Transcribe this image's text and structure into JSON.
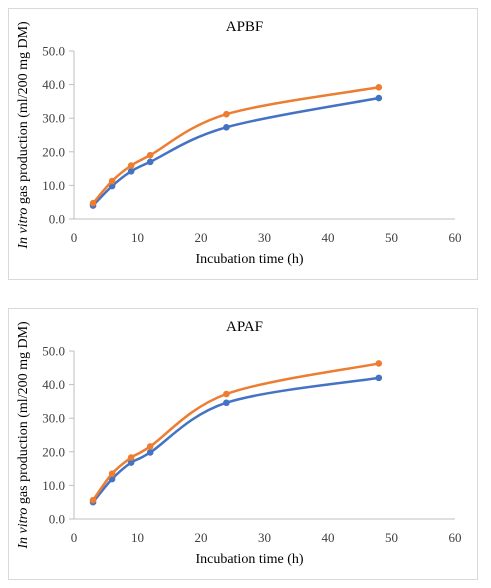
{
  "chart_data": [
    {
      "type": "line",
      "title": "APBF",
      "xlabel": "Incubation time (h)",
      "ylabel": {
        "italic": "In vitro",
        "rest": " gas production (ml/200 mg DM)"
      },
      "xlim": [
        0,
        60
      ],
      "ylim": [
        0,
        50
      ],
      "xticks": [
        "0",
        "10",
        "20",
        "30",
        "40",
        "50",
        "60"
      ],
      "yticks": [
        "0.0",
        "10.0",
        "20.0",
        "30.0",
        "40.0",
        "50.0"
      ],
      "grid": false,
      "legend": "none",
      "x": [
        3,
        6,
        9,
        12,
        24,
        48
      ],
      "series": [
        {
          "color": "#4472c4",
          "values": [
            4.0,
            9.8,
            14.2,
            17.0,
            27.3,
            36.0
          ]
        },
        {
          "color": "#ed7d31",
          "values": [
            4.7,
            11.3,
            15.9,
            19.0,
            31.2,
            39.2
          ]
        }
      ]
    },
    {
      "type": "line",
      "title": "APAF",
      "xlabel": "Incubation time (h)",
      "ylabel": {
        "italic": "In vitro",
        "rest": " gas production (ml/200 mg DM)"
      },
      "xlim": [
        0,
        60
      ],
      "ylim": [
        0,
        50
      ],
      "xticks": [
        "0",
        "10",
        "20",
        "30",
        "40",
        "50",
        "60"
      ],
      "yticks": [
        "0.0",
        "10.0",
        "20.0",
        "30.0",
        "40.0",
        "50.0"
      ],
      "grid": false,
      "legend": "none",
      "x": [
        3,
        6,
        9,
        12,
        24,
        48
      ],
      "series": [
        {
          "color": "#4472c4",
          "values": [
            5.0,
            11.9,
            16.8,
            19.8,
            34.6,
            42.0
          ]
        },
        {
          "color": "#ed7d31",
          "values": [
            5.6,
            13.5,
            18.3,
            21.6,
            37.2,
            46.3
          ]
        }
      ]
    }
  ]
}
